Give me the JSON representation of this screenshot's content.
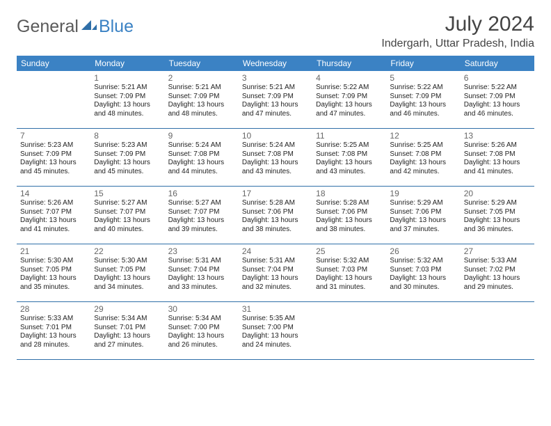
{
  "logo": {
    "text1": "General",
    "text2": "Blue"
  },
  "title": "July 2024",
  "subtitle": "Indergarh, Uttar Pradesh, India",
  "colors": {
    "header_bg": "#3b82c4",
    "header_text": "#ffffff",
    "week_border": "#2f6fa8",
    "body_text": "#222222",
    "daynum_text": "#666666",
    "logo_gray": "#5a5a5a",
    "logo_blue": "#3b82c4",
    "background": "#ffffff"
  },
  "typography": {
    "title_fontsize": 30,
    "subtitle_fontsize": 16,
    "dayheader_fontsize": 12,
    "info_fontsize": 10
  },
  "day_headers": [
    "Sunday",
    "Monday",
    "Tuesday",
    "Wednesday",
    "Thursday",
    "Friday",
    "Saturday"
  ],
  "weeks": [
    [
      null,
      {
        "n": "1",
        "sr": "Sunrise: 5:21 AM",
        "ss": "Sunset: 7:09 PM",
        "d1": "Daylight: 13 hours",
        "d2": "and 48 minutes."
      },
      {
        "n": "2",
        "sr": "Sunrise: 5:21 AM",
        "ss": "Sunset: 7:09 PM",
        "d1": "Daylight: 13 hours",
        "d2": "and 48 minutes."
      },
      {
        "n": "3",
        "sr": "Sunrise: 5:21 AM",
        "ss": "Sunset: 7:09 PM",
        "d1": "Daylight: 13 hours",
        "d2": "and 47 minutes."
      },
      {
        "n": "4",
        "sr": "Sunrise: 5:22 AM",
        "ss": "Sunset: 7:09 PM",
        "d1": "Daylight: 13 hours",
        "d2": "and 47 minutes."
      },
      {
        "n": "5",
        "sr": "Sunrise: 5:22 AM",
        "ss": "Sunset: 7:09 PM",
        "d1": "Daylight: 13 hours",
        "d2": "and 46 minutes."
      },
      {
        "n": "6",
        "sr": "Sunrise: 5:22 AM",
        "ss": "Sunset: 7:09 PM",
        "d1": "Daylight: 13 hours",
        "d2": "and 46 minutes."
      }
    ],
    [
      {
        "n": "7",
        "sr": "Sunrise: 5:23 AM",
        "ss": "Sunset: 7:09 PM",
        "d1": "Daylight: 13 hours",
        "d2": "and 45 minutes."
      },
      {
        "n": "8",
        "sr": "Sunrise: 5:23 AM",
        "ss": "Sunset: 7:09 PM",
        "d1": "Daylight: 13 hours",
        "d2": "and 45 minutes."
      },
      {
        "n": "9",
        "sr": "Sunrise: 5:24 AM",
        "ss": "Sunset: 7:08 PM",
        "d1": "Daylight: 13 hours",
        "d2": "and 44 minutes."
      },
      {
        "n": "10",
        "sr": "Sunrise: 5:24 AM",
        "ss": "Sunset: 7:08 PM",
        "d1": "Daylight: 13 hours",
        "d2": "and 43 minutes."
      },
      {
        "n": "11",
        "sr": "Sunrise: 5:25 AM",
        "ss": "Sunset: 7:08 PM",
        "d1": "Daylight: 13 hours",
        "d2": "and 43 minutes."
      },
      {
        "n": "12",
        "sr": "Sunrise: 5:25 AM",
        "ss": "Sunset: 7:08 PM",
        "d1": "Daylight: 13 hours",
        "d2": "and 42 minutes."
      },
      {
        "n": "13",
        "sr": "Sunrise: 5:26 AM",
        "ss": "Sunset: 7:08 PM",
        "d1": "Daylight: 13 hours",
        "d2": "and 41 minutes."
      }
    ],
    [
      {
        "n": "14",
        "sr": "Sunrise: 5:26 AM",
        "ss": "Sunset: 7:07 PM",
        "d1": "Daylight: 13 hours",
        "d2": "and 41 minutes."
      },
      {
        "n": "15",
        "sr": "Sunrise: 5:27 AM",
        "ss": "Sunset: 7:07 PM",
        "d1": "Daylight: 13 hours",
        "d2": "and 40 minutes."
      },
      {
        "n": "16",
        "sr": "Sunrise: 5:27 AM",
        "ss": "Sunset: 7:07 PM",
        "d1": "Daylight: 13 hours",
        "d2": "and 39 minutes."
      },
      {
        "n": "17",
        "sr": "Sunrise: 5:28 AM",
        "ss": "Sunset: 7:06 PM",
        "d1": "Daylight: 13 hours",
        "d2": "and 38 minutes."
      },
      {
        "n": "18",
        "sr": "Sunrise: 5:28 AM",
        "ss": "Sunset: 7:06 PM",
        "d1": "Daylight: 13 hours",
        "d2": "and 38 minutes."
      },
      {
        "n": "19",
        "sr": "Sunrise: 5:29 AM",
        "ss": "Sunset: 7:06 PM",
        "d1": "Daylight: 13 hours",
        "d2": "and 37 minutes."
      },
      {
        "n": "20",
        "sr": "Sunrise: 5:29 AM",
        "ss": "Sunset: 7:05 PM",
        "d1": "Daylight: 13 hours",
        "d2": "and 36 minutes."
      }
    ],
    [
      {
        "n": "21",
        "sr": "Sunrise: 5:30 AM",
        "ss": "Sunset: 7:05 PM",
        "d1": "Daylight: 13 hours",
        "d2": "and 35 minutes."
      },
      {
        "n": "22",
        "sr": "Sunrise: 5:30 AM",
        "ss": "Sunset: 7:05 PM",
        "d1": "Daylight: 13 hours",
        "d2": "and 34 minutes."
      },
      {
        "n": "23",
        "sr": "Sunrise: 5:31 AM",
        "ss": "Sunset: 7:04 PM",
        "d1": "Daylight: 13 hours",
        "d2": "and 33 minutes."
      },
      {
        "n": "24",
        "sr": "Sunrise: 5:31 AM",
        "ss": "Sunset: 7:04 PM",
        "d1": "Daylight: 13 hours",
        "d2": "and 32 minutes."
      },
      {
        "n": "25",
        "sr": "Sunrise: 5:32 AM",
        "ss": "Sunset: 7:03 PM",
        "d1": "Daylight: 13 hours",
        "d2": "and 31 minutes."
      },
      {
        "n": "26",
        "sr": "Sunrise: 5:32 AM",
        "ss": "Sunset: 7:03 PM",
        "d1": "Daylight: 13 hours",
        "d2": "and 30 minutes."
      },
      {
        "n": "27",
        "sr": "Sunrise: 5:33 AM",
        "ss": "Sunset: 7:02 PM",
        "d1": "Daylight: 13 hours",
        "d2": "and 29 minutes."
      }
    ],
    [
      {
        "n": "28",
        "sr": "Sunrise: 5:33 AM",
        "ss": "Sunset: 7:01 PM",
        "d1": "Daylight: 13 hours",
        "d2": "and 28 minutes."
      },
      {
        "n": "29",
        "sr": "Sunrise: 5:34 AM",
        "ss": "Sunset: 7:01 PM",
        "d1": "Daylight: 13 hours",
        "d2": "and 27 minutes."
      },
      {
        "n": "30",
        "sr": "Sunrise: 5:34 AM",
        "ss": "Sunset: 7:00 PM",
        "d1": "Daylight: 13 hours",
        "d2": "and 26 minutes."
      },
      {
        "n": "31",
        "sr": "Sunrise: 5:35 AM",
        "ss": "Sunset: 7:00 PM",
        "d1": "Daylight: 13 hours",
        "d2": "and 24 minutes."
      },
      null,
      null,
      null
    ]
  ]
}
